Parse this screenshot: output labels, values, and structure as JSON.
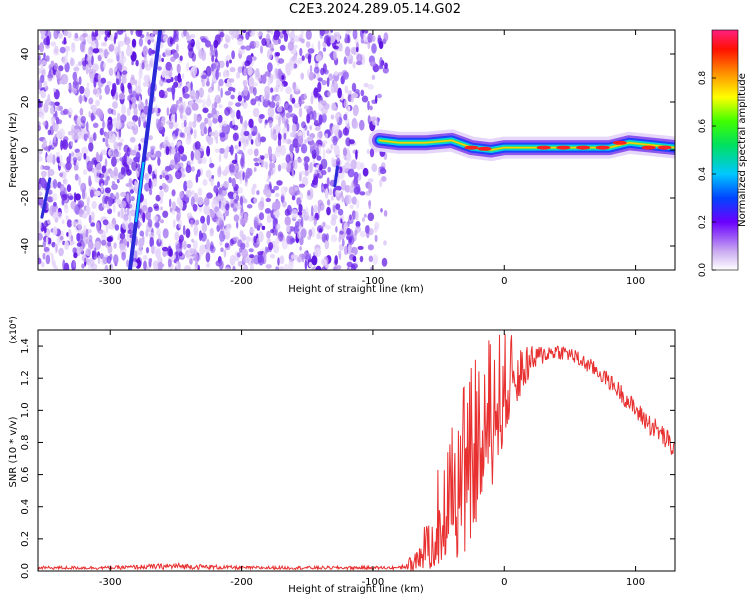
{
  "title": "C2E3.2024.289.05.14.G02",
  "colors": {
    "snr_line": "#e83030",
    "axis": "#000000"
  },
  "chart_data": [
    {
      "type": "heatmap",
      "xlabel": "Height of straight line (km)",
      "ylabel": "Frequency (Hz)",
      "xlim": [
        -355,
        130
      ],
      "ylim": [
        -50,
        50
      ],
      "xticks": [
        -300,
        -200,
        -100,
        0,
        100
      ],
      "xtick_labels": [
        "-300",
        "-200",
        "-100",
        "0",
        "100"
      ],
      "yticks": [
        -40,
        -20,
        0,
        20,
        40
      ],
      "ytick_labels": [
        "-40",
        "-20",
        "0",
        "20",
        "40"
      ],
      "colorbar": {
        "label": "Normalized spectral amplitude",
        "range": [
          0,
          1
        ],
        "ticks": [
          0.0,
          0.2,
          0.4,
          0.6,
          0.8
        ],
        "tick_labels": [
          "0.0",
          "0.2",
          "0.4",
          "0.6",
          "0.8"
        ],
        "colormap": "rainbow-white"
      },
      "features": {
        "noise_region_x": [
          -355,
          -90
        ],
        "signal_track": {
          "x": [
            -95,
            -80,
            -60,
            -40,
            -25,
            -10,
            0,
            20,
            50,
            80,
            95,
            130
          ],
          "freq": [
            4,
            3,
            3,
            4,
            1,
            0,
            1,
            1,
            1,
            1,
            3,
            1
          ]
        },
        "streaks": [
          {
            "x_start": -285,
            "f_start": -50,
            "x_end": -262,
            "f_end": 50
          },
          {
            "x_start": -352,
            "f_start": -28,
            "x_end": -346,
            "f_end": -12
          },
          {
            "x_start": -129,
            "f_start": -15,
            "x_end": -127,
            "f_end": -7
          }
        ]
      }
    },
    {
      "type": "line",
      "xlabel": "Height of straight line (km)",
      "ylabel": "SNR (10 * v/v)",
      "y_multiplier": "(x10⁴)",
      "xlim": [
        -355,
        130
      ],
      "ylim": [
        0,
        1.5
      ],
      "xticks": [
        -300,
        -200,
        -100,
        0,
        100
      ],
      "xtick_labels": [
        "-300",
        "-200",
        "-100",
        "0",
        "100"
      ],
      "yticks": [
        0.0,
        0.2,
        0.4,
        0.6,
        0.8,
        1.0,
        1.2,
        1.4
      ],
      "ytick_labels": [
        "0.0",
        "0.2",
        "0.4",
        "0.6",
        "0.8",
        "1.0",
        "1.2",
        "1.4"
      ],
      "series": [
        {
          "color": "#e83030",
          "envelope_x": [
            -355,
            -300,
            -250,
            -200,
            -150,
            -100,
            -80,
            -70,
            -60,
            -50,
            -40,
            -30,
            -20,
            -10,
            0,
            10,
            20,
            30,
            40,
            50,
            60,
            70,
            80,
            90,
            100,
            110,
            120,
            130
          ],
          "envelope_y": [
            0.02,
            0.02,
            0.03,
            0.02,
            0.02,
            0.02,
            0.02,
            0.05,
            0.2,
            0.35,
            0.5,
            0.65,
            0.85,
            1.0,
            1.15,
            1.25,
            1.3,
            1.35,
            1.37,
            1.35,
            1.3,
            1.25,
            1.18,
            1.1,
            1.0,
            0.92,
            0.85,
            0.75
          ],
          "jitter_y": [
            0.01,
            0.01,
            0.02,
            0.01,
            0.01,
            0.01,
            0.01,
            0.05,
            0.2,
            0.35,
            0.45,
            0.55,
            0.55,
            0.5,
            0.35,
            0.2,
            0.1,
            0.06,
            0.05,
            0.05,
            0.05,
            0.05,
            0.05,
            0.06,
            0.06,
            0.07,
            0.07,
            0.08
          ]
        }
      ]
    }
  ]
}
